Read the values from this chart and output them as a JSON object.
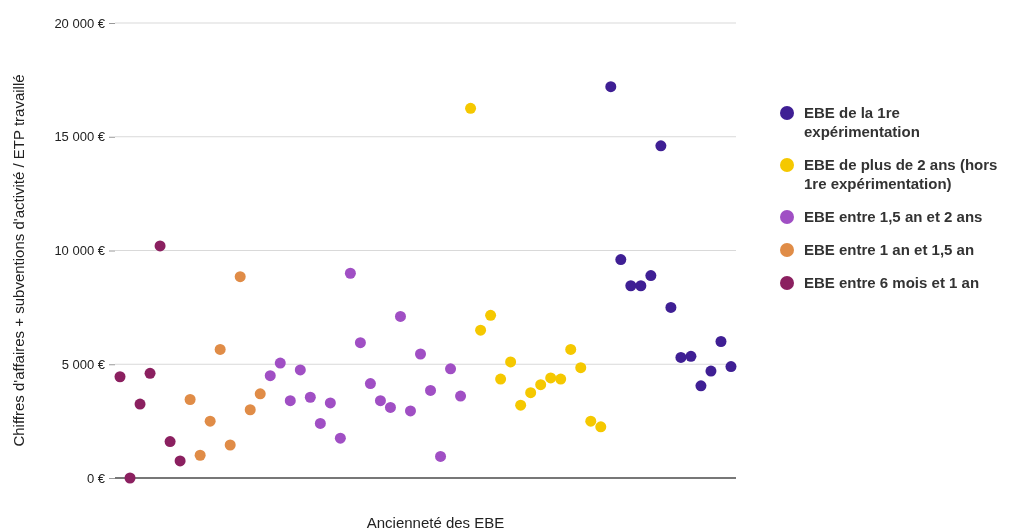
{
  "chart_data": {
    "type": "scatter",
    "xlabel": "Ancienneté des EBE",
    "ylabel": "Chiffres d'affaires + subventions d'activité / ETP travaillé",
    "categories": [
      null,
      null,
      null,
      null,
      null,
      null,
      null,
      null,
      null,
      null,
      null,
      null,
      null,
      null,
      null,
      null,
      null,
      null,
      null,
      null,
      null,
      null,
      null,
      null,
      null,
      null,
      null,
      null,
      null,
      null,
      null,
      null,
      null,
      null,
      null,
      null,
      null,
      null,
      null,
      null,
      null,
      null,
      null,
      null,
      null,
      null,
      null,
      null,
      null,
      null,
      null,
      null,
      null,
      null,
      null,
      null,
      null,
      null,
      null,
      null,
      null,
      null
    ],
    "ylim": [
      0,
      20000
    ],
    "yticks": [
      {
        "value": 0,
        "label": "0 €"
      },
      {
        "value": 5000,
        "label": "5 000 €"
      },
      {
        "value": 10000,
        "label": "10 000 €"
      },
      {
        "value": 15000,
        "label": "15 000 €"
      },
      {
        "value": 20000,
        "label": "20 000 €"
      }
    ],
    "grid": "y",
    "legend": "right",
    "marker": "circle",
    "series": [
      {
        "name": "EBE de la 1re expérimentation",
        "color": "#3f1f94",
        "values": [
          null,
          null,
          null,
          null,
          null,
          null,
          null,
          null,
          null,
          null,
          null,
          null,
          null,
          null,
          null,
          null,
          null,
          null,
          null,
          null,
          null,
          null,
          null,
          null,
          null,
          null,
          null,
          null,
          null,
          null,
          null,
          null,
          null,
          null,
          null,
          null,
          null,
          null,
          null,
          null,
          null,
          null,
          null,
          null,
          null,
          null,
          null,
          null,
          null,
          17200,
          9600,
          8450,
          8450,
          8900,
          14600,
          7500,
          5300,
          5350,
          4050,
          4700,
          6000,
          4900
        ]
      },
      {
        "name": "EBE de plus de 2 ans (hors 1re expérimentation)",
        "color": "#f5c800",
        "values": [
          null,
          null,
          null,
          null,
          null,
          null,
          null,
          null,
          null,
          null,
          null,
          null,
          null,
          null,
          null,
          null,
          null,
          null,
          null,
          null,
          null,
          null,
          null,
          null,
          null,
          null,
          null,
          null,
          null,
          null,
          null,
          null,
          null,
          null,
          null,
          16250,
          6500,
          7150,
          4350,
          5100,
          3200,
          3750,
          4100,
          4400,
          4350,
          5650,
          4850,
          2500,
          2250,
          null,
          null,
          null,
          null,
          null,
          null,
          null,
          null,
          null,
          null,
          null,
          null,
          null
        ]
      },
      {
        "name": "EBE entre 1,5 an et 2 ans",
        "color": "#a04fc4",
        "values": [
          null,
          null,
          null,
          null,
          null,
          null,
          null,
          null,
          null,
          null,
          null,
          null,
          null,
          null,
          null,
          4500,
          5050,
          3400,
          4750,
          3550,
          2400,
          3300,
          1750,
          9000,
          5950,
          4150,
          3400,
          3100,
          7100,
          2950,
          5450,
          3850,
          950,
          4800,
          3600,
          null,
          null,
          null,
          null,
          null,
          null,
          null,
          null,
          null,
          null,
          null,
          null,
          null,
          null,
          null,
          null,
          null,
          null,
          null,
          null,
          null,
          null,
          null,
          null,
          null,
          null,
          null
        ]
      },
      {
        "name": "EBE entre 1 an et 1,5 an",
        "color": "#e08c47",
        "values": [
          null,
          null,
          null,
          null,
          null,
          null,
          null,
          3450,
          1000,
          2500,
          5650,
          1450,
          8850,
          3000,
          3700,
          null,
          null,
          null,
          null,
          null,
          null,
          null,
          null,
          null,
          null,
          null,
          null,
          null,
          null,
          null,
          null,
          null,
          null,
          null,
          null,
          null,
          null,
          null,
          null,
          null,
          null,
          null,
          null,
          null,
          null,
          null,
          null,
          null,
          null,
          null,
          null,
          null,
          null,
          null,
          null,
          null,
          null,
          null,
          null,
          null,
          null,
          null
        ]
      },
      {
        "name": "EBE entre 6 mois et 1 an",
        "color": "#8b2060",
        "values": [
          4450,
          0,
          3250,
          4600,
          10200,
          1600,
          750,
          null,
          null,
          null,
          null,
          null,
          null,
          null,
          null,
          null,
          null,
          null,
          null,
          null,
          null,
          null,
          null,
          null,
          null,
          null,
          null,
          null,
          null,
          null,
          null,
          null,
          null,
          null,
          null,
          null,
          null,
          null,
          null,
          null,
          null,
          null,
          null,
          null,
          null,
          null,
          null,
          null,
          null,
          null,
          null,
          null,
          null,
          null,
          null,
          null,
          null,
          null,
          null,
          null,
          null,
          null
        ]
      }
    ]
  }
}
